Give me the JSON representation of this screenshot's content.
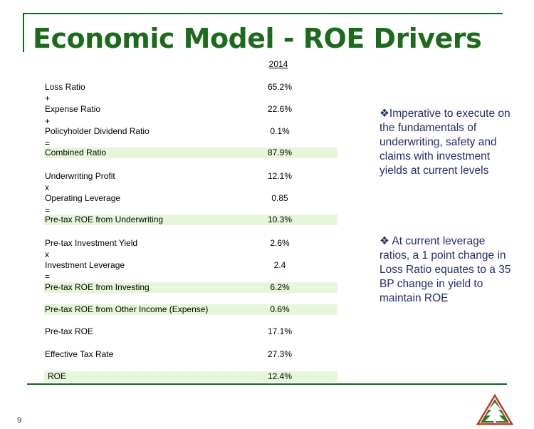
{
  "title": "Economic Model - ROE Drivers",
  "year_header": "2014",
  "rows": [
    {
      "label": "Loss Ratio",
      "value": "65.2%"
    },
    {
      "label": "Expense Ratio",
      "value": "22.6%"
    },
    {
      "label": "Policyholder Dividend Ratio",
      "value": "0.1%"
    },
    {
      "label": "Combined Ratio",
      "value": "87.9%"
    },
    {
      "label": "Underwriting Profit",
      "value": "12.1%"
    },
    {
      "label": "Operating Leverage",
      "value": "0.85"
    },
    {
      "label": "Pre-tax ROE from Underwriting",
      "value": "10.3%"
    },
    {
      "label": "Pre-tax Investment Yield",
      "value": "2.6%"
    },
    {
      "label": "Investment Leverage",
      "value": "2.4"
    },
    {
      "label": "Pre-tax ROE from Investing",
      "value": "6.2%"
    },
    {
      "label": "Pre-tax ROE from Other Income (Expense)",
      "value": "0.6%"
    },
    {
      "label": "Pre-tax ROE",
      "value": "17.1%"
    },
    {
      "label": "Effective Tax Rate",
      "value": "27.3%"
    },
    {
      "label": "ROE",
      "value": "12.4%"
    }
  ],
  "operators": [
    "+",
    "+",
    "=",
    "x",
    "=",
    "x",
    "="
  ],
  "bullets": [
    "Imperative to execute on the fundamentals of underwriting, safety and claims with investment yields at current levels",
    "At current leverage ratios, a 1 point change in Loss Ratio equates to a 35 BP change in yield to maintain ROE"
  ],
  "bullet_marker": "❖",
  "page_number": "9",
  "colors": {
    "title": "#1b6b1b",
    "rule": "#0b6b1f",
    "highlight": "#e6f7d9",
    "bullet_text": "#1f2e6e"
  },
  "logo_icon": "tree-triangle-logo"
}
